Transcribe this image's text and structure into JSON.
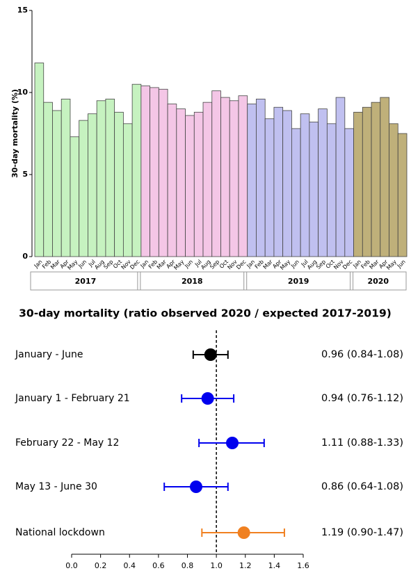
{
  "chart_data": [
    {
      "type": "bar",
      "y_label": "30-day mortality (%)",
      "categories": [
        "Jan",
        "Feb",
        "Mar",
        "Apr",
        "May",
        "Jun",
        "Jul",
        "Aug",
        "Sep",
        "Oct",
        "Nov",
        "Dec",
        "Jan",
        "Feb",
        "Mar",
        "Apr",
        "May",
        "Jun",
        "Jul",
        "Aug",
        "Sep",
        "Oct",
        "Nov",
        "Dec",
        "Jan",
        "Feb",
        "Mar",
        "Apr",
        "May",
        "Jun",
        "Jul",
        "Aug",
        "Sep",
        "Oct",
        "Nov",
        "Dec",
        "Jan",
        "Feb",
        "Mar",
        "Apr",
        "May",
        "Jun"
      ],
      "series": [
        {
          "name": "2017",
          "color": "#c6f2c0",
          "values": [
            11.8,
            9.4,
            8.9,
            9.6,
            7.3,
            8.3,
            8.7,
            9.5,
            9.6,
            8.8,
            8.1,
            10.5,
            null,
            null,
            null,
            null,
            null,
            null,
            null,
            null,
            null,
            null,
            null,
            null,
            null,
            null,
            null,
            null,
            null,
            null,
            null,
            null,
            null,
            null,
            null,
            null,
            null,
            null,
            null,
            null,
            null,
            null
          ]
        },
        {
          "name": "2018",
          "color": "#f4c6e6",
          "values": [
            null,
            null,
            null,
            null,
            null,
            null,
            null,
            null,
            null,
            null,
            null,
            null,
            10.4,
            10.3,
            10.2,
            9.3,
            9.0,
            8.6,
            8.8,
            9.4,
            10.1,
            9.7,
            9.5,
            9.8,
            null,
            null,
            null,
            null,
            null,
            null,
            null,
            null,
            null,
            null,
            null,
            null,
            null,
            null,
            null,
            null,
            null,
            null
          ]
        },
        {
          "name": "2019",
          "color": "#c0c0f0",
          "values": [
            null,
            null,
            null,
            null,
            null,
            null,
            null,
            null,
            null,
            null,
            null,
            null,
            null,
            null,
            null,
            null,
            null,
            null,
            null,
            null,
            null,
            null,
            null,
            null,
            9.3,
            9.6,
            8.4,
            9.1,
            8.9,
            7.8,
            8.7,
            8.2,
            9.0,
            8.1,
            9.7,
            7.8,
            null,
            null,
            null,
            null,
            null,
            null
          ]
        },
        {
          "name": "2020",
          "color": "#bfb07a",
          "values": [
            null,
            null,
            null,
            null,
            null,
            null,
            null,
            null,
            null,
            null,
            null,
            null,
            null,
            null,
            null,
            null,
            null,
            null,
            null,
            null,
            null,
            null,
            null,
            null,
            null,
            null,
            null,
            null,
            null,
            null,
            null,
            null,
            null,
            null,
            null,
            null,
            8.8,
            9.1,
            9.4,
            9.7,
            8.1,
            7.5
          ]
        }
      ],
      "ylim": [
        0,
        15
      ],
      "yticks": [
        0,
        5,
        10,
        15
      ]
    },
    {
      "type": "forest",
      "title": "30-day mortality (ratio observed 2020 / expected 2017-2019)",
      "categories": [
        "January - June",
        "January 1 - February 21",
        "February 22 - May 12",
        "May 13 - June 30",
        "National lockdown"
      ],
      "values": [
        0.96,
        0.94,
        1.11,
        0.86,
        1.19
      ],
      "lower": [
        0.84,
        0.76,
        0.88,
        0.64,
        0.9
      ],
      "upper": [
        1.08,
        1.12,
        1.33,
        1.08,
        1.47
      ],
      "value_labels": [
        "0.96 (0.84-1.08)",
        "0.94 (0.76-1.12)",
        "1.11 (0.88-1.33)",
        "0.86 (0.64-1.08)",
        "1.19 (0.90-1.47)"
      ],
      "colors": [
        "#000000",
        "#0000ee",
        "#0000ee",
        "#0000ee",
        "#f08020"
      ],
      "reference_line": 1,
      "xlim": [
        0,
        1.6
      ],
      "xticks": [
        {
          "value": 0,
          "label": "0.0"
        },
        {
          "value": 0.2,
          "label": "0.2"
        },
        {
          "value": 0.4,
          "label": "0.4"
        },
        {
          "value": 0.6,
          "label": "0.6"
        },
        {
          "value": 0.8,
          "label": "0.8"
        },
        {
          "value": 1,
          "label": "1.0"
        },
        {
          "value": 1.2,
          "label": "1.2"
        },
        {
          "value": 1.4,
          "label": "1.4"
        },
        {
          "value": 1.6,
          "label": "1.6"
        }
      ]
    }
  ]
}
